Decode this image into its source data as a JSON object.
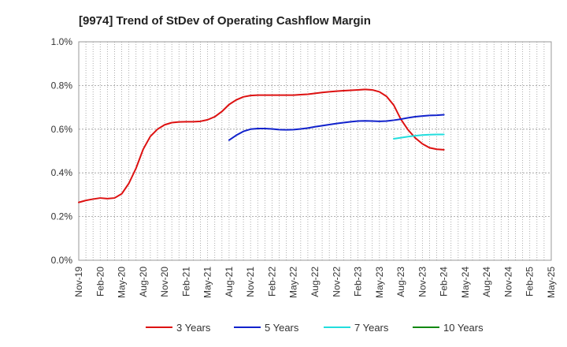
{
  "chart_data": {
    "type": "line",
    "title": "[9974]  Trend of StDev of Operating Cashflow Margin",
    "xlabel": "",
    "ylabel": "",
    "x_tick_labels": [
      "Nov-19",
      "Feb-20",
      "May-20",
      "Aug-20",
      "Nov-20",
      "Feb-21",
      "May-21",
      "Aug-21",
      "Nov-21",
      "Feb-22",
      "May-22",
      "Aug-22",
      "Nov-22",
      "Feb-23",
      "May-23",
      "Aug-23",
      "Nov-23",
      "Feb-24",
      "May-24",
      "Aug-24",
      "Nov-24",
      "Feb-25",
      "May-25"
    ],
    "y_tick_labels": [
      "0.0%",
      "0.2%",
      "0.4%",
      "0.6%",
      "0.8%",
      "1.0%"
    ],
    "ylim": [
      0,
      1.0
    ],
    "grid": true,
    "legend_position": "bottom",
    "x_months": [
      "2019-11",
      "2019-12",
      "2020-01",
      "2020-02",
      "2020-03",
      "2020-04",
      "2020-05",
      "2020-06",
      "2020-07",
      "2020-08",
      "2020-09",
      "2020-10",
      "2020-11",
      "2020-12",
      "2021-01",
      "2021-02",
      "2021-03",
      "2021-04",
      "2021-05",
      "2021-06",
      "2021-07",
      "2021-08",
      "2021-09",
      "2021-10",
      "2021-11",
      "2021-12",
      "2022-01",
      "2022-02",
      "2022-03",
      "2022-04",
      "2022-05",
      "2022-06",
      "2022-07",
      "2022-08",
      "2022-09",
      "2022-10",
      "2022-11",
      "2022-12",
      "2023-01",
      "2023-02",
      "2023-03",
      "2023-04",
      "2023-05",
      "2023-06",
      "2023-07",
      "2023-08",
      "2023-09",
      "2023-10",
      "2023-11",
      "2023-12",
      "2024-01",
      "2024-02"
    ],
    "series": [
      {
        "name": "3 Years",
        "color": "#dd1111",
        "values": [
          0.265,
          0.274,
          0.28,
          0.285,
          0.282,
          0.285,
          0.304,
          0.352,
          0.421,
          0.508,
          0.567,
          0.6,
          0.62,
          0.63,
          0.633,
          0.634,
          0.634,
          0.636,
          0.643,
          0.657,
          0.681,
          0.713,
          0.734,
          0.748,
          0.754,
          0.756,
          0.756,
          0.756,
          0.756,
          0.756,
          0.756,
          0.758,
          0.76,
          0.764,
          0.768,
          0.771,
          0.774,
          0.776,
          0.778,
          0.78,
          0.782,
          0.78,
          0.771,
          0.75,
          0.71,
          0.645,
          0.597,
          0.56,
          0.533,
          0.515,
          0.508,
          0.506
        ]
      },
      {
        "name": "5 Years",
        "color": "#1122cc",
        "values": [
          null,
          null,
          null,
          null,
          null,
          null,
          null,
          null,
          null,
          null,
          null,
          null,
          null,
          null,
          null,
          null,
          null,
          null,
          null,
          null,
          null,
          0.55,
          0.572,
          0.59,
          0.6,
          0.603,
          0.603,
          0.601,
          0.598,
          0.597,
          0.598,
          0.601,
          0.605,
          0.611,
          0.616,
          0.621,
          0.626,
          0.63,
          0.634,
          0.637,
          0.638,
          0.637,
          0.636,
          0.637,
          0.641,
          0.646,
          0.652,
          0.657,
          0.66,
          0.663,
          0.664,
          0.666
        ]
      },
      {
        "name": "7 Years",
        "color": "#22dddd",
        "values": [
          null,
          null,
          null,
          null,
          null,
          null,
          null,
          null,
          null,
          null,
          null,
          null,
          null,
          null,
          null,
          null,
          null,
          null,
          null,
          null,
          null,
          null,
          null,
          null,
          null,
          null,
          null,
          null,
          null,
          null,
          null,
          null,
          null,
          null,
          null,
          null,
          null,
          null,
          null,
          null,
          null,
          null,
          null,
          null,
          0.556,
          0.561,
          0.566,
          0.57,
          0.573,
          0.575,
          0.576,
          0.576
        ]
      },
      {
        "name": "10 Years",
        "color": "#118811",
        "values": []
      }
    ]
  }
}
